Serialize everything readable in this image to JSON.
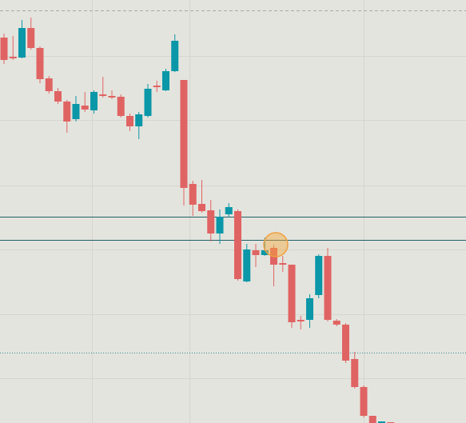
{
  "chart_data": {
    "type": "candlestick",
    "up_color": "#0a97a8",
    "down_color": "#e06363",
    "ylim": [
      0,
      529
    ],
    "open": [
      482,
      458,
      457,
      494,
      469,
      431,
      415,
      402,
      380,
      397,
      391,
      411,
      409,
      408,
      384,
      371,
      384,
      422,
      416,
      440,
      429,
      299,
      274,
      266,
      237,
      261,
      265,
      177,
      216,
      210,
      219,
      200,
      198,
      129,
      129,
      160,
      209,
      128,
      123,
      80,
      45,
      9,
      0,
      1
    ],
    "high": [
      487,
      484,
      504,
      507,
      471,
      434,
      419,
      404,
      409,
      414,
      416,
      433,
      416,
      411,
      387,
      389,
      424,
      428,
      443,
      486,
      429,
      303,
      304,
      279,
      267,
      275,
      267,
      224,
      224,
      232,
      223,
      209,
      198,
      134,
      161,
      211,
      219,
      130,
      125,
      89,
      47,
      9,
      2,
      1
    ],
    "low": [
      449,
      454,
      456,
      467,
      425,
      412,
      399,
      363,
      377,
      389,
      387,
      407,
      405,
      382,
      365,
      355,
      382,
      414,
      415,
      439,
      272,
      259,
      263,
      227,
      224,
      257,
      178,
      176,
      195,
      209,
      171,
      189,
      119,
      117,
      119,
      156,
      127,
      121,
      75,
      43,
      7,
      0,
      0,
      0
    ],
    "close": [
      454,
      456,
      494,
      469,
      430,
      415,
      402,
      377,
      399,
      392,
      414,
      409,
      407,
      384,
      371,
      386,
      418,
      420,
      440,
      478,
      294,
      273,
      265,
      237,
      258,
      270,
      180,
      217,
      210,
      216,
      198,
      198,
      126,
      127,
      156,
      209,
      129,
      123,
      78,
      45,
      9,
      0,
      2,
      0
    ],
    "levels": [
      {
        "value": 516,
        "style": "dashed",
        "color": "#a8a8a8"
      },
      {
        "value": 258,
        "style": "solid",
        "color": "#1f5f66"
      },
      {
        "value": 229,
        "style": "solid",
        "color": "#1f5f66"
      },
      {
        "value": 88,
        "style": "dotted",
        "color": "#2a8a94"
      }
    ]
  }
}
